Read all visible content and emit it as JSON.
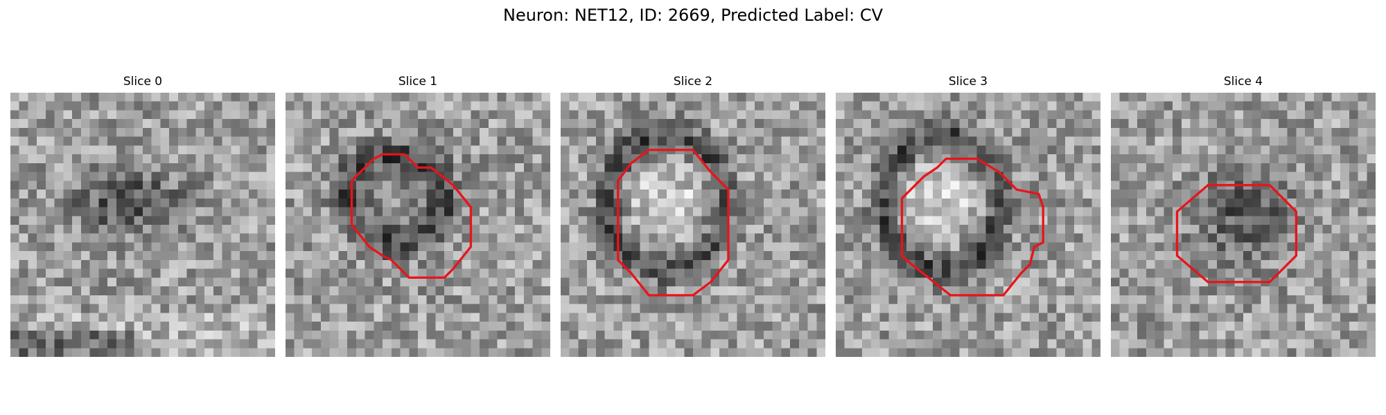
{
  "figure": {
    "title": "Neuron: NET12, ID: 2669, Predicted Label: CV"
  },
  "panels": [
    {
      "title": "Slice 0",
      "contour": false,
      "pattern": "dark-blob"
    },
    {
      "title": "Slice 1",
      "contour": true,
      "pattern": "dark-ring"
    },
    {
      "title": "Slice 2",
      "contour": true,
      "pattern": "bright-center-dark-ring"
    },
    {
      "title": "Slice 3",
      "contour": true,
      "pattern": "bright-center-dark-ring"
    },
    {
      "title": "Slice 4",
      "contour": true,
      "pattern": "dark-center"
    }
  ],
  "style": {
    "contour_color": "#e8141b",
    "colormap": "grayscale"
  }
}
